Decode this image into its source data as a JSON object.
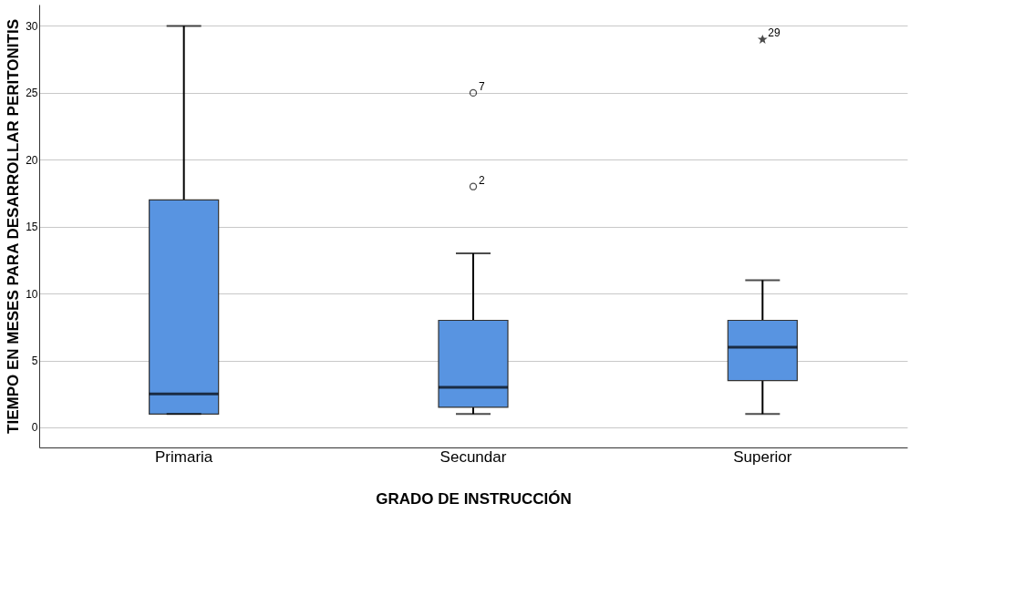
{
  "chart_data": {
    "type": "box",
    "xlabel": "GRADO DE INSTRUCCIÓN",
    "ylabel": "TIEMPO EN MESES PARA DESARROLLAR PERITONITIS",
    "categories": [
      "Primaria",
      "Secundar",
      "Superior"
    ],
    "color": "#5894e1",
    "boxes": [
      {
        "low": 1,
        "q1": 1,
        "median": 2.5,
        "q3": 17,
        "high": 30
      },
      {
        "low": 1,
        "q1": 1.5,
        "median": 3,
        "q3": 8,
        "high": 13,
        "outliers": [
          18,
          25
        ]
      },
      {
        "low": 1,
        "q1": 3.5,
        "median": 6,
        "q3": 8,
        "high": 11,
        "outliers": [
          29
        ]
      }
    ],
    "annotations": [
      "2",
      "7",
      "29"
    ],
    "ylim": [
      -1.5,
      31.6
    ],
    "yticks": [
      0,
      5,
      10,
      15,
      20,
      25,
      30
    ],
    "grid": "y"
  }
}
